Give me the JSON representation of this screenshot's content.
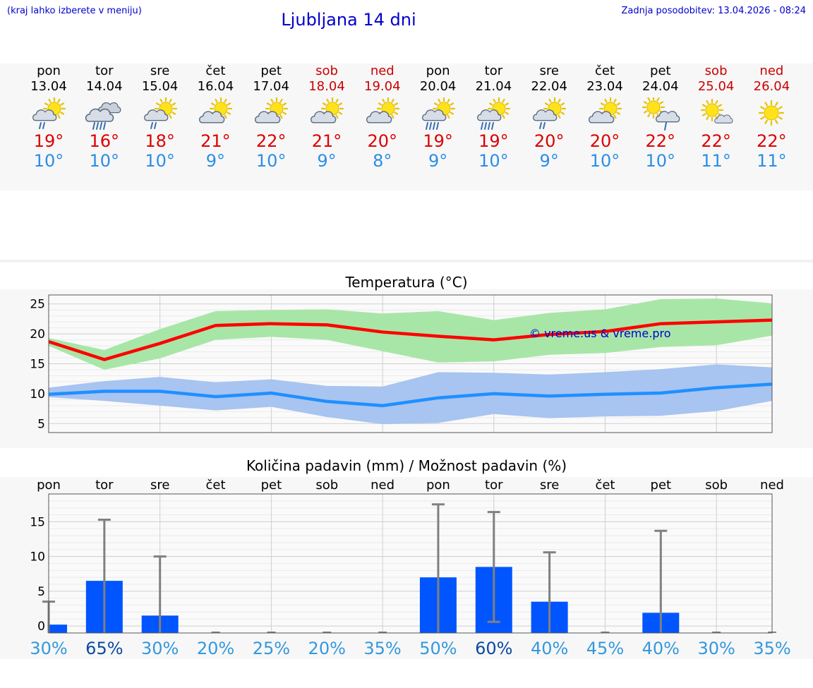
{
  "header": {
    "hint": "(kraj lahko izberete v meniju)",
    "title": "Ljubljana 14 dni",
    "updated": "Zadnja posodobitev: 13.04.2026 - 08:24"
  },
  "days": [
    {
      "name": "pon",
      "date": "13.04",
      "weekend": false,
      "icon": "sun-cloud-rain-icon",
      "tmax": "19°",
      "tmin": "10°"
    },
    {
      "name": "tor",
      "date": "14.04",
      "weekend": false,
      "icon": "cloud-heavy-rain-icon",
      "tmax": "16°",
      "tmin": "10°"
    },
    {
      "name": "sre",
      "date": "15.04",
      "weekend": false,
      "icon": "sun-cloud-rain-icon",
      "tmax": "18°",
      "tmin": "10°"
    },
    {
      "name": "čet",
      "date": "16.04",
      "weekend": false,
      "icon": "sun-cloud-icon",
      "tmax": "21°",
      "tmin": "9°"
    },
    {
      "name": "pet",
      "date": "17.04",
      "weekend": false,
      "icon": "sun-cloud-icon",
      "tmax": "22°",
      "tmin": "10°"
    },
    {
      "name": "sob",
      "date": "18.04",
      "weekend": true,
      "icon": "sun-cloud-icon",
      "tmax": "21°",
      "tmin": "9°"
    },
    {
      "name": "ned",
      "date": "19.04",
      "weekend": true,
      "icon": "sun-cloud-icon",
      "tmax": "20°",
      "tmin": "8°"
    },
    {
      "name": "pon",
      "date": "20.04",
      "weekend": false,
      "icon": "sun-cloud-heavy-rain-icon",
      "tmax": "19°",
      "tmin": "9°"
    },
    {
      "name": "tor",
      "date": "21.04",
      "weekend": false,
      "icon": "sun-cloud-heavy-rain-icon",
      "tmax": "19°",
      "tmin": "10°"
    },
    {
      "name": "sre",
      "date": "22.04",
      "weekend": false,
      "icon": "sun-cloud-rain-icon",
      "tmax": "20°",
      "tmin": "9°"
    },
    {
      "name": "čet",
      "date": "23.04",
      "weekend": false,
      "icon": "sun-cloud-icon",
      "tmax": "20°",
      "tmin": "10°"
    },
    {
      "name": "pet",
      "date": "24.04",
      "weekend": false,
      "icon": "sun-cloud-shower-icon",
      "tmax": "22°",
      "tmin": "10°"
    },
    {
      "name": "sob",
      "date": "25.04",
      "weekend": true,
      "icon": "sun-small-cloud-icon",
      "tmax": "22°",
      "tmin": "11°"
    },
    {
      "name": "ned",
      "date": "26.04",
      "weekend": true,
      "icon": "sun-icon",
      "tmax": "22°",
      "tmin": "11°"
    }
  ],
  "colors": {
    "max_line": "#ff0000",
    "max_band": "#a8e6a8",
    "min_line": "#1e90ff",
    "min_band": "#a8c4f0",
    "precip_bar": "#0055ff",
    "whisker": "#808080",
    "prob_low": "#3399dd",
    "prob_high": "#0b4aa2",
    "weekend": "#cc0000",
    "link": "#0000cc"
  },
  "chart_data": [
    {
      "type": "line",
      "title": "Temperatura (°C)",
      "xlabel": "",
      "ylabel": "",
      "ylim": [
        3.5,
        26.5
      ],
      "yticks": [
        5,
        10,
        15,
        20,
        25
      ],
      "grid": true,
      "watermark": "© vreme.us & vreme.pro",
      "x": [
        0,
        1,
        2,
        3,
        4,
        5,
        6,
        7,
        8,
        9,
        10,
        11,
        12,
        13
      ],
      "series": [
        {
          "role": "max",
          "values": [
            18.7,
            15.7,
            18.4,
            21.4,
            21.7,
            21.5,
            20.3,
            19.6,
            19.0,
            19.9,
            20.4,
            21.7,
            22.0,
            22.3
          ],
          "band_high": [
            19.3,
            17.3,
            20.8,
            23.8,
            24.0,
            24.1,
            23.4,
            23.8,
            22.3,
            23.5,
            24.1,
            25.8,
            25.9,
            25.1
          ],
          "band_low": [
            18.0,
            14.0,
            15.9,
            19.0,
            19.5,
            19.0,
            17.1,
            15.2,
            15.4,
            16.5,
            16.8,
            17.8,
            18.1,
            19.7
          ]
        },
        {
          "role": "min",
          "values": [
            9.9,
            10.4,
            10.4,
            9.5,
            10.1,
            8.7,
            8.0,
            9.3,
            10.0,
            9.6,
            9.9,
            10.1,
            11.0,
            11.6
          ],
          "band_high": [
            11.0,
            12.1,
            12.8,
            11.9,
            12.4,
            11.3,
            11.2,
            13.6,
            13.5,
            13.2,
            13.6,
            14.1,
            14.9,
            14.4
          ],
          "band_low": [
            9.4,
            8.8,
            8.0,
            7.2,
            7.8,
            6.1,
            4.9,
            5.1,
            6.6,
            5.9,
            6.2,
            6.3,
            7.1,
            8.8
          ]
        }
      ]
    },
    {
      "type": "bar",
      "title": "Količina padavin (mm) / Možnost padavin (%)",
      "xlabel": "",
      "ylabel": "",
      "ylim": [
        -1,
        19
      ],
      "yticks": [
        0,
        5,
        10,
        15
      ],
      "grid": true,
      "categories": [
        "pon",
        "tor",
        "sre",
        "čet",
        "pet",
        "sob",
        "ned",
        "pon",
        "tor",
        "sre",
        "čet",
        "pet",
        "sob",
        "ned"
      ],
      "values": [
        0.2,
        6.5,
        1.5,
        0,
        0,
        0,
        0,
        7.0,
        8.5,
        3.5,
        0,
        1.9,
        0,
        0
      ],
      "whisker_high": [
        3.5,
        15.3,
        10.0,
        0,
        0,
        0,
        0,
        17.5,
        16.4,
        10.6,
        0,
        13.7,
        0,
        0
      ],
      "whisker_low": [
        0,
        0,
        0,
        0,
        0,
        0,
        0,
        0,
        0.6,
        0,
        0,
        0,
        0,
        0
      ],
      "probability": [
        "30%",
        "65%",
        "30%",
        "20%",
        "25%",
        "20%",
        "35%",
        "50%",
        "60%",
        "40%",
        "45%",
        "40%",
        "30%",
        "35%"
      ],
      "probability_high": [
        false,
        true,
        false,
        false,
        false,
        false,
        false,
        false,
        true,
        false,
        false,
        false,
        false,
        false
      ]
    }
  ]
}
